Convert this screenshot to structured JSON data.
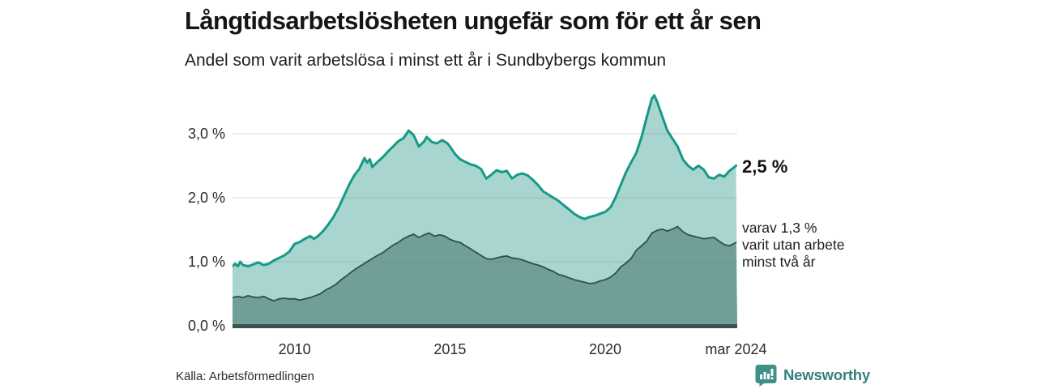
{
  "header": {
    "title": "Långtidsarbetslösheten ungefär som för ett år sen",
    "subtitle": "Andel som varit arbetslösa i minst ett år i Sundbybergs kommun"
  },
  "chart_data": {
    "type": "area",
    "title": "Långtidsarbetslösheten ungefär som för ett år sen",
    "subtitle": "Andel som varit arbetslösa i minst ett år i Sundbybergs kommun",
    "x_unit": "decimal year (monthly data)",
    "x_range": [
      2008.0,
      2024.25
    ],
    "ylim": [
      0,
      3.76
    ],
    "grid": "horizontal",
    "legend_position": "right-annotations",
    "y_ticks": [
      {
        "value": 0,
        "label": "0,0 %"
      },
      {
        "value": 1,
        "label": "1,0 %"
      },
      {
        "value": 2,
        "label": "2,0 %"
      },
      {
        "value": 3,
        "label": "3,0 %"
      }
    ],
    "x_ticks": [
      {
        "value": 2010,
        "label": "2010"
      },
      {
        "value": 2015,
        "label": "2015"
      },
      {
        "value": 2020,
        "label": "2020"
      },
      {
        "value": 2024.21,
        "label": "mar 2024"
      }
    ],
    "annotations": {
      "total_label": "2,5 %",
      "varav_lines": [
        "varav 1,3 %",
        "varit utan arbete",
        "minst två år"
      ]
    },
    "series": [
      {
        "name": "Andel arbetslösa minst ett år",
        "color": "#149a87",
        "fill": "#a8d5cf",
        "stroke_width": 3,
        "last_value_label": "2,5 %",
        "points": [
          [
            2008.0,
            0.93
          ],
          [
            2008.08,
            0.97
          ],
          [
            2008.17,
            0.93
          ],
          [
            2008.25,
            1.0
          ],
          [
            2008.33,
            0.95
          ],
          [
            2008.5,
            0.93
          ],
          [
            2008.67,
            0.96
          ],
          [
            2008.83,
            0.99
          ],
          [
            2009.0,
            0.95
          ],
          [
            2009.17,
            0.97
          ],
          [
            2009.33,
            1.02
          ],
          [
            2009.5,
            1.06
          ],
          [
            2009.67,
            1.1
          ],
          [
            2009.83,
            1.16
          ],
          [
            2010.0,
            1.28
          ],
          [
            2010.17,
            1.31
          ],
          [
            2010.33,
            1.36
          ],
          [
            2010.5,
            1.4
          ],
          [
            2010.62,
            1.36
          ],
          [
            2010.75,
            1.4
          ],
          [
            2010.92,
            1.48
          ],
          [
            2011.08,
            1.58
          ],
          [
            2011.25,
            1.7
          ],
          [
            2011.42,
            1.85
          ],
          [
            2011.58,
            2.02
          ],
          [
            2011.75,
            2.2
          ],
          [
            2011.92,
            2.35
          ],
          [
            2012.08,
            2.45
          ],
          [
            2012.25,
            2.62
          ],
          [
            2012.33,
            2.55
          ],
          [
            2012.42,
            2.6
          ],
          [
            2012.5,
            2.48
          ],
          [
            2012.67,
            2.56
          ],
          [
            2012.83,
            2.63
          ],
          [
            2013.0,
            2.72
          ],
          [
            2013.17,
            2.8
          ],
          [
            2013.33,
            2.88
          ],
          [
            2013.5,
            2.93
          ],
          [
            2013.67,
            3.05
          ],
          [
            2013.83,
            2.98
          ],
          [
            2014.0,
            2.8
          ],
          [
            2014.17,
            2.88
          ],
          [
            2014.25,
            2.95
          ],
          [
            2014.42,
            2.87
          ],
          [
            2014.58,
            2.85
          ],
          [
            2014.75,
            2.9
          ],
          [
            2014.92,
            2.85
          ],
          [
            2015.0,
            2.8
          ],
          [
            2015.17,
            2.68
          ],
          [
            2015.33,
            2.6
          ],
          [
            2015.5,
            2.56
          ],
          [
            2015.67,
            2.52
          ],
          [
            2015.83,
            2.5
          ],
          [
            2016.0,
            2.45
          ],
          [
            2016.17,
            2.3
          ],
          [
            2016.33,
            2.36
          ],
          [
            2016.5,
            2.43
          ],
          [
            2016.67,
            2.4
          ],
          [
            2016.83,
            2.42
          ],
          [
            2017.0,
            2.3
          ],
          [
            2017.17,
            2.36
          ],
          [
            2017.33,
            2.38
          ],
          [
            2017.5,
            2.35
          ],
          [
            2017.67,
            2.28
          ],
          [
            2017.83,
            2.2
          ],
          [
            2018.0,
            2.1
          ],
          [
            2018.17,
            2.05
          ],
          [
            2018.33,
            2.0
          ],
          [
            2018.5,
            1.95
          ],
          [
            2018.67,
            1.88
          ],
          [
            2018.83,
            1.82
          ],
          [
            2019.0,
            1.75
          ],
          [
            2019.17,
            1.7
          ],
          [
            2019.33,
            1.67
          ],
          [
            2019.5,
            1.7
          ],
          [
            2019.67,
            1.72
          ],
          [
            2019.83,
            1.75
          ],
          [
            2020.0,
            1.78
          ],
          [
            2020.17,
            1.85
          ],
          [
            2020.33,
            2.0
          ],
          [
            2020.5,
            2.2
          ],
          [
            2020.67,
            2.4
          ],
          [
            2020.83,
            2.55
          ],
          [
            2021.0,
            2.7
          ],
          [
            2021.17,
            2.95
          ],
          [
            2021.33,
            3.25
          ],
          [
            2021.5,
            3.55
          ],
          [
            2021.58,
            3.6
          ],
          [
            2021.67,
            3.5
          ],
          [
            2021.83,
            3.28
          ],
          [
            2022.0,
            3.05
          ],
          [
            2022.17,
            2.92
          ],
          [
            2022.33,
            2.8
          ],
          [
            2022.5,
            2.6
          ],
          [
            2022.67,
            2.5
          ],
          [
            2022.83,
            2.44
          ],
          [
            2023.0,
            2.5
          ],
          [
            2023.17,
            2.44
          ],
          [
            2023.33,
            2.32
          ],
          [
            2023.5,
            2.3
          ],
          [
            2023.67,
            2.36
          ],
          [
            2023.83,
            2.33
          ],
          [
            2024.0,
            2.42
          ],
          [
            2024.08,
            2.45
          ],
          [
            2024.21,
            2.5
          ]
        ]
      },
      {
        "name": "Varav utan arbete minst två år",
        "color": "#2f4f4a",
        "fill": "#6f9f97",
        "stroke_width": 1.8,
        "last_value_label": "1,3 %",
        "points": [
          [
            2008.0,
            0.44
          ],
          [
            2008.17,
            0.46
          ],
          [
            2008.33,
            0.44
          ],
          [
            2008.5,
            0.47
          ],
          [
            2008.67,
            0.45
          ],
          [
            2008.83,
            0.44
          ],
          [
            2009.0,
            0.46
          ],
          [
            2009.17,
            0.42
          ],
          [
            2009.33,
            0.39
          ],
          [
            2009.5,
            0.42
          ],
          [
            2009.67,
            0.43
          ],
          [
            2009.83,
            0.42
          ],
          [
            2010.0,
            0.42
          ],
          [
            2010.17,
            0.4
          ],
          [
            2010.33,
            0.42
          ],
          [
            2010.5,
            0.44
          ],
          [
            2010.67,
            0.47
          ],
          [
            2010.83,
            0.5
          ],
          [
            2011.0,
            0.56
          ],
          [
            2011.17,
            0.6
          ],
          [
            2011.33,
            0.65
          ],
          [
            2011.5,
            0.72
          ],
          [
            2011.67,
            0.78
          ],
          [
            2011.83,
            0.84
          ],
          [
            2012.0,
            0.9
          ],
          [
            2012.17,
            0.95
          ],
          [
            2012.33,
            1.0
          ],
          [
            2012.5,
            1.05
          ],
          [
            2012.67,
            1.1
          ],
          [
            2012.83,
            1.14
          ],
          [
            2013.0,
            1.2
          ],
          [
            2013.17,
            1.26
          ],
          [
            2013.33,
            1.3
          ],
          [
            2013.5,
            1.36
          ],
          [
            2013.67,
            1.4
          ],
          [
            2013.83,
            1.43
          ],
          [
            2014.0,
            1.38
          ],
          [
            2014.17,
            1.42
          ],
          [
            2014.33,
            1.45
          ],
          [
            2014.5,
            1.4
          ],
          [
            2014.67,
            1.42
          ],
          [
            2014.83,
            1.4
          ],
          [
            2015.0,
            1.35
          ],
          [
            2015.17,
            1.32
          ],
          [
            2015.33,
            1.3
          ],
          [
            2015.5,
            1.25
          ],
          [
            2015.67,
            1.2
          ],
          [
            2015.83,
            1.15
          ],
          [
            2016.0,
            1.1
          ],
          [
            2016.17,
            1.05
          ],
          [
            2016.33,
            1.04
          ],
          [
            2016.5,
            1.06
          ],
          [
            2016.67,
            1.08
          ],
          [
            2016.83,
            1.09
          ],
          [
            2017.0,
            1.06
          ],
          [
            2017.17,
            1.05
          ],
          [
            2017.33,
            1.03
          ],
          [
            2017.5,
            1.0
          ],
          [
            2017.67,
            0.97
          ],
          [
            2017.83,
            0.95
          ],
          [
            2018.0,
            0.92
          ],
          [
            2018.17,
            0.88
          ],
          [
            2018.33,
            0.85
          ],
          [
            2018.5,
            0.8
          ],
          [
            2018.67,
            0.78
          ],
          [
            2018.83,
            0.75
          ],
          [
            2019.0,
            0.72
          ],
          [
            2019.17,
            0.7
          ],
          [
            2019.33,
            0.68
          ],
          [
            2019.5,
            0.66
          ],
          [
            2019.67,
            0.67
          ],
          [
            2019.83,
            0.7
          ],
          [
            2020.0,
            0.72
          ],
          [
            2020.17,
            0.76
          ],
          [
            2020.33,
            0.82
          ],
          [
            2020.5,
            0.92
          ],
          [
            2020.67,
            0.98
          ],
          [
            2020.83,
            1.05
          ],
          [
            2021.0,
            1.18
          ],
          [
            2021.17,
            1.25
          ],
          [
            2021.33,
            1.32
          ],
          [
            2021.5,
            1.45
          ],
          [
            2021.67,
            1.49
          ],
          [
            2021.83,
            1.51
          ],
          [
            2022.0,
            1.48
          ],
          [
            2022.17,
            1.51
          ],
          [
            2022.33,
            1.55
          ],
          [
            2022.5,
            1.47
          ],
          [
            2022.67,
            1.42
          ],
          [
            2022.83,
            1.4
          ],
          [
            2023.0,
            1.38
          ],
          [
            2023.17,
            1.36
          ],
          [
            2023.33,
            1.37
          ],
          [
            2023.5,
            1.38
          ],
          [
            2023.67,
            1.32
          ],
          [
            2023.83,
            1.27
          ],
          [
            2024.0,
            1.25
          ],
          [
            2024.21,
            1.3
          ]
        ]
      }
    ]
  },
  "footer": {
    "source": "Källa: Arbetsförmedlingen",
    "brand": "Newsworthy"
  },
  "colors": {
    "line_total": "#149a87",
    "fill_total": "#a8d5cf",
    "line_two_year": "#2f4f4a",
    "fill_two_year": "#6f9f97",
    "axis_bar": "#3f514d",
    "gridline": "#dcdcdc",
    "brand_teal": "#3d9186",
    "brand_text": "#35807b"
  }
}
